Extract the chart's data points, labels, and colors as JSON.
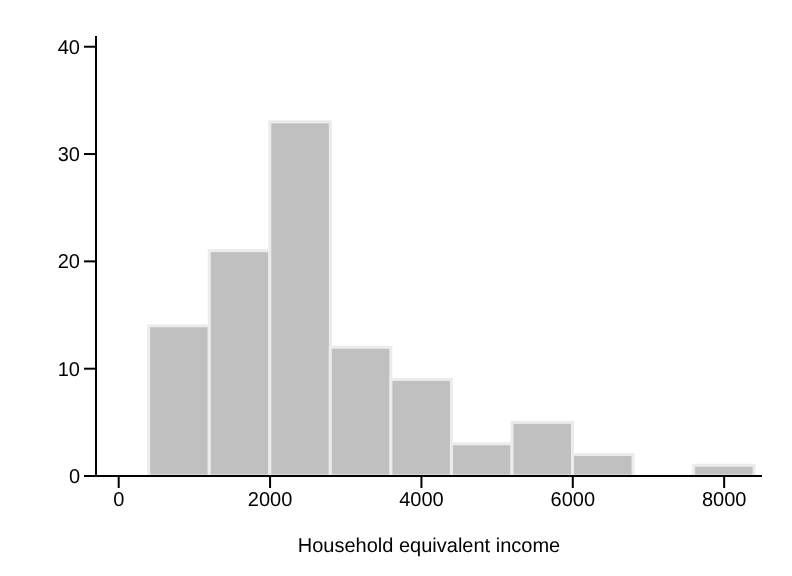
{
  "chart_data": {
    "type": "histogram",
    "xlabel": "Household equivalent income",
    "bins": [
      400,
      1200,
      2000,
      2800,
      3600,
      4400,
      5200,
      6000,
      6800,
      7600,
      8400
    ],
    "values": [
      14,
      21,
      33,
      12,
      9,
      3,
      5,
      2,
      0,
      1
    ],
    "color": "#c0c0c0",
    "xlim": [
      -300,
      8500
    ],
    "xticks": [
      0,
      2000,
      4000,
      6000,
      8000
    ],
    "ylim": [
      0,
      41
    ],
    "yticks": [
      0,
      10,
      20,
      30,
      40
    ],
    "grid": false
  }
}
